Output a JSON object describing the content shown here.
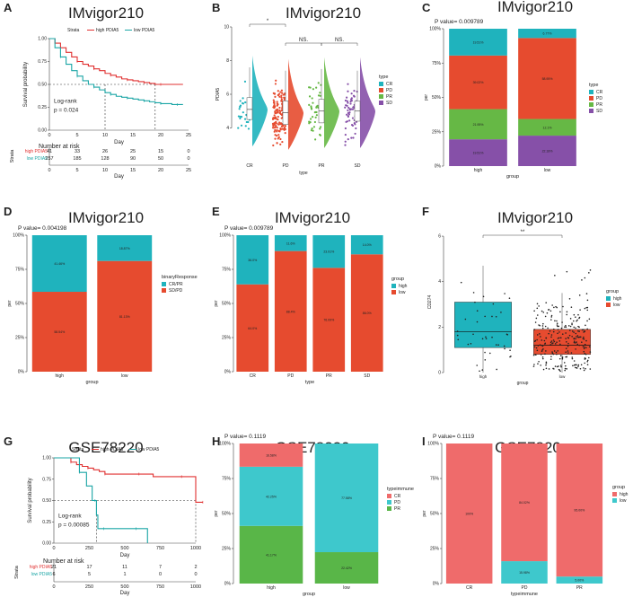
{
  "colors": {
    "red": "#e64b2f",
    "teal": "#1fb3bd",
    "green": "#66b845",
    "purple": "#8650a8",
    "salmon": "#ef6b6b",
    "cyan": "#3ec8cc",
    "green2": "#59b648",
    "km_red": "#e03030",
    "km_teal": "#1aa5a5"
  },
  "panels": [
    {
      "letter": "A",
      "title": "IMvigor210"
    },
    {
      "letter": "B",
      "title": "IMvigor210"
    },
    {
      "letter": "C",
      "title": "IMvigor210"
    },
    {
      "letter": "D",
      "title": "IMvigor210"
    },
    {
      "letter": "E",
      "title": "IMvigor210"
    },
    {
      "letter": "F",
      "title": "IMvigor210"
    },
    {
      "letter": "G",
      "title": "GSE78220"
    },
    {
      "letter": "H",
      "title": "GSE78220"
    },
    {
      "letter": "I",
      "title": "GSE7820"
    }
  ],
  "chart_data": [
    {
      "id": "A",
      "type": "line",
      "title": "IMvigor210",
      "xlabel": "Day",
      "ylabel": "Survival probability",
      "xlim": [
        0,
        25
      ],
      "ylim": [
        0,
        1
      ],
      "xticks": [
        "0",
        "5",
        "10",
        "15",
        "20",
        "25"
      ],
      "yticks": [
        "0.00",
        "0.25",
        "0.50",
        "0.75",
        "1.00"
      ],
      "legend_title": "Strata",
      "legend": [
        "high PDIA5",
        "low PDIA5"
      ],
      "annotation": [
        "Log-rank",
        "p = 0.024"
      ],
      "series": [
        {
          "name": "high PDIA5",
          "x": [
            0,
            1,
            2,
            3,
            4,
            5,
            6,
            7,
            8,
            9,
            10,
            11,
            12,
            13,
            14,
            15,
            16,
            17,
            18,
            19,
            20,
            22,
            24
          ],
          "y": [
            1,
            0.95,
            0.9,
            0.85,
            0.8,
            0.75,
            0.72,
            0.7,
            0.67,
            0.65,
            0.62,
            0.6,
            0.58,
            0.56,
            0.55,
            0.54,
            0.53,
            0.52,
            0.51,
            0.5,
            0.5,
            0.5,
            0.5
          ]
        },
        {
          "name": "low PDIA5",
          "x": [
            0,
            1,
            2,
            3,
            4,
            5,
            6,
            7,
            8,
            9,
            10,
            11,
            12,
            13,
            14,
            15,
            16,
            17,
            18,
            19,
            20,
            21,
            22,
            23,
            24
          ],
          "y": [
            1,
            0.9,
            0.8,
            0.72,
            0.65,
            0.59,
            0.54,
            0.5,
            0.47,
            0.44,
            0.41,
            0.39,
            0.37,
            0.36,
            0.35,
            0.34,
            0.33,
            0.32,
            0.31,
            0.3,
            0.29,
            0.29,
            0.28,
            0.28,
            0.28
          ]
        }
      ],
      "median_x": [
        10,
        19
      ],
      "risk_table": {
        "title": "Number at risk",
        "ylabel": "Strata",
        "xlabel": "Day",
        "rows": [
          {
            "name": "high PDIA5",
            "values": [
              "41",
              "33",
              "26",
              "25",
              "15",
              "0"
            ]
          },
          {
            "name": "low PDIA5",
            "values": [
              "257",
              "185",
              "128",
              "90",
              "50",
              "0"
            ]
          }
        ],
        "xticks": [
          "0",
          "5",
          "10",
          "15",
          "20",
          "25"
        ]
      }
    },
    {
      "id": "B",
      "type": "scatter",
      "title": "IMvigor210",
      "xlabel": "type",
      "ylabel": "PDIA5",
      "categories": [
        "CR",
        "PD",
        "PR",
        "SD"
      ],
      "ylim": [
        2,
        10
      ],
      "yticks": [
        "4",
        "6",
        "8",
        "10"
      ],
      "medians": [
        5.1,
        4.9,
        5.0,
        5.0
      ],
      "q1": [
        4.5,
        4.2,
        4.3,
        4.4
      ],
      "q3": [
        5.8,
        5.6,
        5.7,
        5.6
      ],
      "significance": [
        {
          "from": "CR",
          "to": "PD",
          "label": "*"
        },
        {
          "from": "PD",
          "to": "PR",
          "label": "NS."
        },
        {
          "from": "PR",
          "to": "SD",
          "label": "NS."
        }
      ],
      "legend_title": "type",
      "legend": [
        "CR",
        "PD",
        "PR",
        "SD"
      ]
    },
    {
      "id": "C",
      "type": "bar",
      "title": "IMvigor210",
      "pvalue": "P value= 0.009789",
      "xlabel": "group",
      "ylabel": "per",
      "categories": [
        "high",
        "low"
      ],
      "yticks": [
        "0%",
        "25%",
        "50%",
        "75%",
        "100%"
      ],
      "legend_title": "type",
      "legend": [
        "CR",
        "PD",
        "PR",
        "SD"
      ],
      "series": [
        {
          "name": "SD",
          "values": [
            19.51,
            22.18
          ],
          "labels": [
            "19.51%",
            "22.18%"
          ]
        },
        {
          "name": "PR",
          "values": [
            21.95,
            12.1
          ],
          "labels": [
            "21.95%",
            "12.1%"
          ]
        },
        {
          "name": "PD",
          "values": [
            39.02,
            58.95
          ],
          "labels": [
            "39.02%",
            "58.95%"
          ]
        },
        {
          "name": "CR",
          "values": [
            19.51,
            6.77
          ],
          "labels": [
            "19.51%",
            "6.77%"
          ]
        }
      ]
    },
    {
      "id": "D",
      "type": "bar",
      "title": "IMvigor210",
      "pvalue": "P value= 0.004198",
      "xlabel": "group",
      "ylabel": "per",
      "categories": [
        "high",
        "low"
      ],
      "yticks": [
        "0%",
        "25%",
        "50%",
        "75%",
        "100%"
      ],
      "legend_title": "binaryResponse",
      "legend": [
        "CR/PR",
        "SD/PD"
      ],
      "series": [
        {
          "name": "SD/PD",
          "values": [
            58.54,
            81.13
          ],
          "labels": [
            "58.54%",
            "81.13%"
          ]
        },
        {
          "name": "CR/PR",
          "values": [
            41.46,
            18.87
          ],
          "labels": [
            "41.46%",
            "18.87%"
          ]
        }
      ]
    },
    {
      "id": "E",
      "type": "bar",
      "title": "IMvigor210",
      "pvalue": "P value= 0.009789",
      "xlabel": "type",
      "ylabel": "per",
      "categories": [
        "CR",
        "PD",
        "PR",
        "SD"
      ],
      "yticks": [
        "0%",
        "25%",
        "50%",
        "75%",
        "100%"
      ],
      "legend_title": "group",
      "legend": [
        "high",
        "low"
      ],
      "series": [
        {
          "name": "low",
          "values": [
            64.0,
            88.4,
            76.09,
            86.0
          ],
          "labels": [
            "64.0%",
            "88.4%",
            "76.09%",
            "86.0%"
          ]
        },
        {
          "name": "high",
          "values": [
            36.0,
            11.6,
            23.91,
            14.0
          ],
          "labels": [
            "36.0%",
            "11.6%",
            "23.91%",
            "14.0%"
          ]
        }
      ]
    },
    {
      "id": "F",
      "type": "scatter",
      "title": "IMvigor210",
      "xlabel": "group",
      "ylabel": "CD274",
      "categories": [
        "high",
        "low"
      ],
      "ylim": [
        0,
        6.2
      ],
      "yticks": [
        "0",
        "2",
        "4",
        "6"
      ],
      "medians": [
        1.8,
        1.2
      ],
      "q1": [
        1.1,
        0.8
      ],
      "q3": [
        3.1,
        1.9
      ],
      "significance": [
        {
          "from": "high",
          "to": "low",
          "label": "**"
        }
      ],
      "legend_title": "group",
      "legend": [
        "high",
        "low"
      ]
    },
    {
      "id": "G",
      "type": "line",
      "title": "GSE78220",
      "xlabel": "Day",
      "ylabel": "Survival probability",
      "xlim": [
        0,
        1000
      ],
      "ylim": [
        0,
        1
      ],
      "xticks": [
        "0",
        "250",
        "500",
        "750",
        "1000"
      ],
      "yticks": [
        "0.00",
        "0.25",
        "0.50",
        "0.75",
        "1.00"
      ],
      "legend_title": "Strata",
      "legend": [
        "high PDIA5",
        "low PDIA5"
      ],
      "annotation": [
        "Log-rank",
        "p = 0.00085"
      ],
      "series": [
        {
          "name": "high PDIA5",
          "x": [
            0,
            80,
            120,
            160,
            200,
            240,
            280,
            320,
            360,
            420,
            500,
            600,
            700,
            800,
            900,
            960,
            1000,
            1050
          ],
          "y": [
            1,
            1,
            0.95,
            0.92,
            0.9,
            0.88,
            0.86,
            0.84,
            0.81,
            0.81,
            0.81,
            0.81,
            0.78,
            0.78,
            0.78,
            0.78,
            0.48,
            0.48
          ]
        },
        {
          "name": "low PDIA5",
          "x": [
            0,
            150,
            180,
            230,
            270,
            290,
            300,
            310,
            350,
            420,
            500,
            580,
            660
          ],
          "y": [
            1,
            1,
            0.83,
            0.67,
            0.5,
            0.5,
            0.33,
            0.17,
            0.17,
            0.17,
            0.17,
            0.17,
            0.0
          ]
        }
      ],
      "median_x": [
        300,
        1000
      ],
      "risk_table": {
        "title": "Number at risk",
        "ylabel": "Strata",
        "xlabel": "Day",
        "rows": [
          {
            "name": "high PDIA5",
            "values": [
              "21",
              "17",
              "11",
              "7",
              "2"
            ]
          },
          {
            "name": "low PDIA5",
            "values": [
              "6",
              "5",
              "1",
              "0",
              "0"
            ]
          }
        ],
        "xticks": [
          "0",
          "250",
          "500",
          "750",
          "1000"
        ]
      }
    },
    {
      "id": "H",
      "type": "bar",
      "title": "GSE78220",
      "pvalue": "P value= 0.1119",
      "xlabel": "group",
      "ylabel": "per",
      "categories": [
        "high",
        "low"
      ],
      "yticks": [
        "0%",
        "25%",
        "50%",
        "75%",
        "100%"
      ],
      "legend_title": "typeimmune",
      "legend": [
        "CR",
        "PD",
        "PR"
      ],
      "series": [
        {
          "name": "PR",
          "values": [
            41.17,
            22.42
          ],
          "labels": [
            "41.17%",
            "22.42%"
          ]
        },
        {
          "name": "PD",
          "values": [
            42.25,
            77.58
          ],
          "labels": [
            "42.25%",
            "77.58%"
          ]
        },
        {
          "name": "CR",
          "values": [
            16.58,
            0
          ],
          "labels": [
            "16.58%",
            ""
          ]
        }
      ]
    },
    {
      "id": "I",
      "type": "bar",
      "title": "GSE7820",
      "pvalue": "P value= 0.1119",
      "xlabel": "typeimmune",
      "ylabel": "per",
      "categories": [
        "CR",
        "PD",
        "PR"
      ],
      "yticks": [
        "0%",
        "25%",
        "50%",
        "75%",
        "100%"
      ],
      "legend_title": "group",
      "legend": [
        "high",
        "low"
      ],
      "series": [
        {
          "name": "low",
          "values": [
            0,
            15.98,
            5.0
          ],
          "labels": [
            "",
            "15.98%",
            "5.00%"
          ]
        },
        {
          "name": "high",
          "values": [
            100,
            84.02,
            95.0
          ],
          "labels": [
            "100%",
            "84.02%",
            "95.00%"
          ]
        }
      ]
    }
  ]
}
